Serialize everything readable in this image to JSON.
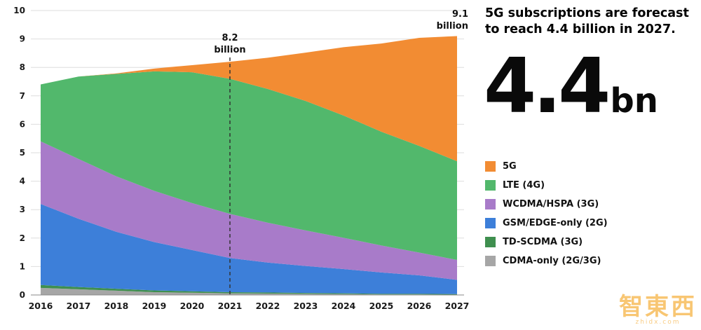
{
  "chart_data": {
    "type": "area",
    "stacked": true,
    "x": [
      2016,
      2017,
      2018,
      2019,
      2020,
      2021,
      2022,
      2023,
      2024,
      2025,
      2026,
      2027
    ],
    "ylim": [
      0,
      10
    ],
    "yticks": [
      0,
      1,
      2,
      3,
      4,
      5,
      6,
      7,
      8,
      9,
      10
    ],
    "grid": "horizontal",
    "legend_position": "right",
    "series": [
      {
        "name": "CDMA-only (2G/3G)",
        "color": "#A6A6A6",
        "values": [
          0.25,
          0.2,
          0.15,
          0.1,
          0.08,
          0.06,
          0.05,
          0.04,
          0.03,
          0.02,
          0.02,
          0.01
        ]
      },
      {
        "name": "TD-SCDMA (3G)",
        "color": "#3F8F4F",
        "values": [
          0.1,
          0.08,
          0.07,
          0.06,
          0.05,
          0.04,
          0.04,
          0.03,
          0.03,
          0.02,
          0.02,
          0.02
        ]
      },
      {
        "name": "GSM/EDGE-only (2G)",
        "color": "#3D7FD9",
        "values": [
          2.85,
          2.4,
          2.0,
          1.7,
          1.45,
          1.2,
          1.05,
          0.95,
          0.85,
          0.75,
          0.65,
          0.5
        ]
      },
      {
        "name": "WCDMA/HSPA (3G)",
        "color": "#A87BC9",
        "values": [
          2.2,
          2.1,
          1.95,
          1.8,
          1.65,
          1.55,
          1.4,
          1.25,
          1.1,
          0.95,
          0.8,
          0.7
        ]
      },
      {
        "name": "LTE (4G)",
        "color": "#52B86C",
        "values": [
          2.0,
          2.9,
          3.6,
          4.2,
          4.6,
          4.75,
          4.7,
          4.55,
          4.3,
          4.0,
          3.75,
          3.47
        ]
      },
      {
        "name": "5G",
        "color": "#F28C33",
        "values": [
          0,
          0,
          0.02,
          0.1,
          0.25,
          0.6,
          1.1,
          1.7,
          2.4,
          3.1,
          3.8,
          4.4
        ]
      }
    ],
    "annotations": [
      {
        "x": 2021,
        "lines": [
          "8.2",
          "billion"
        ],
        "dashed_line": true,
        "align": "middle"
      },
      {
        "x": 2027,
        "lines": [
          "9.1",
          "billion"
        ],
        "dashed_line": false,
        "align": "end"
      }
    ]
  },
  "panel": {
    "headline": "5G subscriptions are forecast to reach 4.4 billion in 2027.",
    "big_number": "4.4",
    "big_suffix": "bn"
  },
  "watermark": {
    "text": "智東西",
    "subtext": "zhidx.com"
  }
}
